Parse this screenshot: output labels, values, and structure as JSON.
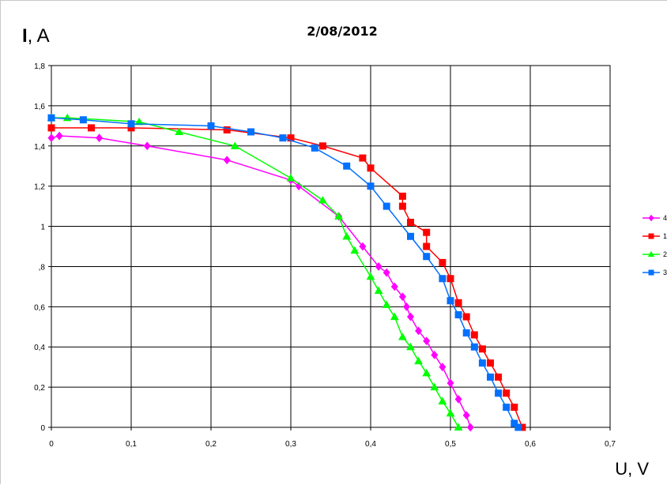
{
  "chart_data": {
    "type": "line",
    "title": "2/08/2012",
    "ylabel_bold": "I",
    "ylabel_rest": ", A",
    "xlabel": "U, V",
    "xlim": [
      0,
      0.7
    ],
    "ylim": [
      0,
      1.8
    ],
    "grid": true,
    "legend_position": "right",
    "x_ticks": [
      {
        "value": 0,
        "label": "0"
      },
      {
        "value": 0.1,
        "label": "0,1"
      },
      {
        "value": 0.2,
        "label": "0,2"
      },
      {
        "value": 0.3,
        "label": "0,3"
      },
      {
        "value": 0.4,
        "label": "0,4"
      },
      {
        "value": 0.5,
        "label": "0,5"
      },
      {
        "value": 0.6,
        "label": "0,6"
      },
      {
        "value": 0.7,
        "label": "0,7"
      }
    ],
    "y_ticks": [
      {
        "value": 0,
        "label": "0"
      },
      {
        "value": 0.2,
        "label": "0,2"
      },
      {
        "value": 0.4,
        "label": "0,4"
      },
      {
        "value": 0.6,
        "label": "0,6"
      },
      {
        "value": 0.8,
        "label": ",8"
      },
      {
        "value": 1.0,
        "label": "1"
      },
      {
        "value": 1.2,
        "label": "1,2"
      },
      {
        "value": 1.4,
        "label": "1,4"
      },
      {
        "value": 1.6,
        "label": "1,6"
      },
      {
        "value": 1.8,
        "label": "1,8"
      }
    ],
    "series": [
      {
        "name": "4",
        "color": "#ff00ff",
        "marker": "diamond",
        "points": [
          [
            0.0,
            1.44
          ],
          [
            0.01,
            1.45
          ],
          [
            0.06,
            1.44
          ],
          [
            0.12,
            1.4
          ],
          [
            0.22,
            1.33
          ],
          [
            0.3,
            1.23
          ],
          [
            0.31,
            1.2
          ],
          [
            0.36,
            1.05
          ],
          [
            0.39,
            0.9
          ],
          [
            0.41,
            0.8
          ],
          [
            0.42,
            0.77
          ],
          [
            0.43,
            0.7
          ],
          [
            0.44,
            0.65
          ],
          [
            0.445,
            0.6
          ],
          [
            0.45,
            0.55
          ],
          [
            0.46,
            0.48
          ],
          [
            0.47,
            0.43
          ],
          [
            0.48,
            0.36
          ],
          [
            0.49,
            0.3
          ],
          [
            0.5,
            0.22
          ],
          [
            0.51,
            0.14
          ],
          [
            0.52,
            0.06
          ],
          [
            0.525,
            0.0
          ]
        ]
      },
      {
        "name": "1",
        "color": "#ff0000",
        "marker": "square",
        "points": [
          [
            0.0,
            1.49
          ],
          [
            0.05,
            1.49
          ],
          [
            0.1,
            1.49
          ],
          [
            0.22,
            1.48
          ],
          [
            0.3,
            1.44
          ],
          [
            0.34,
            1.4
          ],
          [
            0.39,
            1.34
          ],
          [
            0.4,
            1.29
          ],
          [
            0.44,
            1.15
          ],
          [
            0.44,
            1.1
          ],
          [
            0.45,
            1.02
          ],
          [
            0.47,
            0.97
          ],
          [
            0.47,
            0.9
          ],
          [
            0.49,
            0.82
          ],
          [
            0.5,
            0.74
          ],
          [
            0.51,
            0.62
          ],
          [
            0.52,
            0.55
          ],
          [
            0.53,
            0.46
          ],
          [
            0.54,
            0.39
          ],
          [
            0.55,
            0.32
          ],
          [
            0.56,
            0.25
          ],
          [
            0.57,
            0.17
          ],
          [
            0.58,
            0.1
          ],
          [
            0.59,
            0.0
          ]
        ]
      },
      {
        "name": "2",
        "color": "#00ff00",
        "marker": "triangle",
        "points": [
          [
            0.0,
            1.54
          ],
          [
            0.02,
            1.54
          ],
          [
            0.11,
            1.52
          ],
          [
            0.16,
            1.47
          ],
          [
            0.23,
            1.4
          ],
          [
            0.3,
            1.24
          ],
          [
            0.34,
            1.13
          ],
          [
            0.36,
            1.05
          ],
          [
            0.37,
            0.95
          ],
          [
            0.38,
            0.88
          ],
          [
            0.4,
            0.75
          ],
          [
            0.41,
            0.68
          ],
          [
            0.42,
            0.61
          ],
          [
            0.43,
            0.55
          ],
          [
            0.44,
            0.45
          ],
          [
            0.45,
            0.4
          ],
          [
            0.46,
            0.33
          ],
          [
            0.47,
            0.27
          ],
          [
            0.48,
            0.2
          ],
          [
            0.49,
            0.13
          ],
          [
            0.5,
            0.07
          ],
          [
            0.51,
            0.0
          ]
        ]
      },
      {
        "name": "3",
        "color": "#0070ff",
        "marker": "square",
        "points": [
          [
            0.0,
            1.54
          ],
          [
            0.04,
            1.53
          ],
          [
            0.1,
            1.51
          ],
          [
            0.2,
            1.5
          ],
          [
            0.25,
            1.47
          ],
          [
            0.29,
            1.44
          ],
          [
            0.33,
            1.39
          ],
          [
            0.37,
            1.3
          ],
          [
            0.4,
            1.2
          ],
          [
            0.42,
            1.1
          ],
          [
            0.45,
            0.95
          ],
          [
            0.47,
            0.85
          ],
          [
            0.49,
            0.74
          ],
          [
            0.5,
            0.63
          ],
          [
            0.51,
            0.56
          ],
          [
            0.52,
            0.47
          ],
          [
            0.53,
            0.4
          ],
          [
            0.54,
            0.32
          ],
          [
            0.55,
            0.25
          ],
          [
            0.56,
            0.17
          ],
          [
            0.57,
            0.1
          ],
          [
            0.58,
            0.02
          ],
          [
            0.585,
            0.0
          ]
        ]
      }
    ]
  }
}
